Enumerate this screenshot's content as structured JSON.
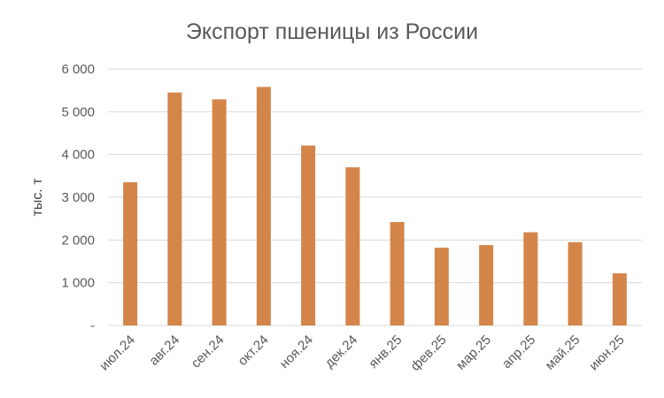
{
  "chart_data": {
    "type": "bar",
    "title": "Экспорт пшеницы из России",
    "xlabel": "",
    "ylabel": "тыс. т",
    "categories": [
      "июл.24",
      "авг.24",
      "сен.24",
      "окт.24",
      "ноя.24",
      "дек.24",
      "янв.25",
      "фев.25",
      "мар.25",
      "апр.25",
      "май.25",
      "июн.25"
    ],
    "values": [
      3350,
      5450,
      5290,
      5580,
      4210,
      3700,
      2420,
      1820,
      1880,
      2180,
      1950,
      1220
    ],
    "ylim": [
      0,
      6000
    ],
    "yticks": [
      0,
      1000,
      2000,
      3000,
      4000,
      5000,
      6000
    ],
    "ytick_labels": [
      "-",
      "1 000",
      "2 000",
      "3 000",
      "4 000",
      "5 000",
      "6 000"
    ],
    "grid": true,
    "legend": "none",
    "colors": {
      "bar": "#D4854A",
      "grid": "#D9D9D9",
      "text": "#595959"
    }
  }
}
